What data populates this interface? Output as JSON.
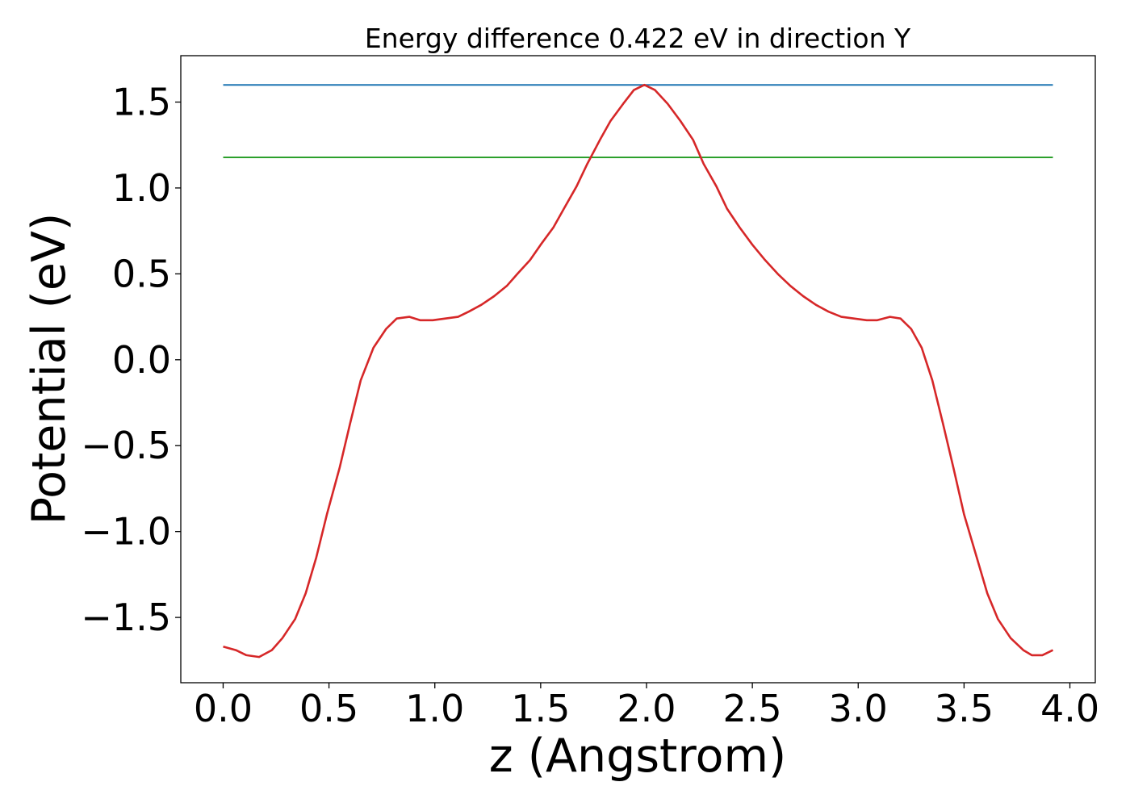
{
  "chart_data": {
    "type": "line",
    "title": "Energy difference 0.422 eV in direction Y",
    "xlabel": "z (Angstrom)",
    "ylabel": "Potential (eV)",
    "xlim": [
      -0.2,
      4.12
    ],
    "ylim": [
      -1.88,
      1.77
    ],
    "xticks": [
      0.0,
      0.5,
      1.0,
      1.5,
      2.0,
      2.5,
      3.0,
      3.5,
      4.0
    ],
    "xtick_labels": [
      "0.0",
      "0.5",
      "1.0",
      "1.5",
      "2.0",
      "2.5",
      "3.0",
      "3.5",
      "4.0"
    ],
    "yticks": [
      -1.5,
      -1.0,
      -0.5,
      0.0,
      0.5,
      1.0,
      1.5
    ],
    "ytick_labels": [
      "−1.5",
      "−1.0",
      "−0.5",
      "0.0",
      "0.5",
      "1.0",
      "1.5"
    ],
    "grid": false,
    "legend": "none",
    "series": [
      {
        "color": "#1f77b4",
        "x": [
          0.0,
          3.92
        ],
        "y": [
          1.6,
          1.6
        ]
      },
      {
        "color": "#2ca02c",
        "x": [
          0.0,
          3.92
        ],
        "y": [
          1.178,
          1.178
        ]
      },
      {
        "color": "#d62728",
        "x": [
          0.0,
          0.06,
          0.11,
          0.17,
          0.23,
          0.28,
          0.34,
          0.39,
          0.44,
          0.49,
          0.55,
          0.6,
          0.65,
          0.71,
          0.77,
          0.82,
          0.88,
          0.93,
          0.99,
          1.05,
          1.11,
          1.16,
          1.22,
          1.28,
          1.34,
          1.39,
          1.45,
          1.5,
          1.56,
          1.61,
          1.67,
          1.72,
          1.78,
          1.83,
          1.89,
          1.94,
          1.99,
          2.04,
          2.1,
          2.16,
          2.22,
          2.27,
          2.33,
          2.38,
          2.44,
          2.5,
          2.56,
          2.62,
          2.68,
          2.74,
          2.8,
          2.86,
          2.92,
          2.98,
          3.04,
          3.09,
          3.15,
          3.2,
          3.25,
          3.3,
          3.35,
          3.4,
          3.45,
          3.5,
          3.56,
          3.61,
          3.66,
          3.72,
          3.78,
          3.82,
          3.87,
          3.92
        ],
        "y": [
          -1.67,
          -1.69,
          -1.72,
          -1.73,
          -1.69,
          -1.62,
          -1.51,
          -1.36,
          -1.15,
          -0.9,
          -0.63,
          -0.37,
          -0.12,
          0.07,
          0.18,
          0.24,
          0.25,
          0.23,
          0.23,
          0.24,
          0.25,
          0.28,
          0.32,
          0.37,
          0.43,
          0.5,
          0.58,
          0.67,
          0.77,
          0.88,
          1.01,
          1.14,
          1.28,
          1.39,
          1.49,
          1.57,
          1.6,
          1.57,
          1.49,
          1.39,
          1.28,
          1.14,
          1.01,
          0.88,
          0.77,
          0.67,
          0.58,
          0.5,
          0.43,
          0.37,
          0.32,
          0.28,
          0.25,
          0.24,
          0.23,
          0.23,
          0.25,
          0.24,
          0.18,
          0.07,
          -0.12,
          -0.37,
          -0.63,
          -0.9,
          -1.15,
          -1.36,
          -1.51,
          -1.62,
          -1.69,
          -1.72,
          -1.72,
          -1.69
        ]
      }
    ]
  }
}
